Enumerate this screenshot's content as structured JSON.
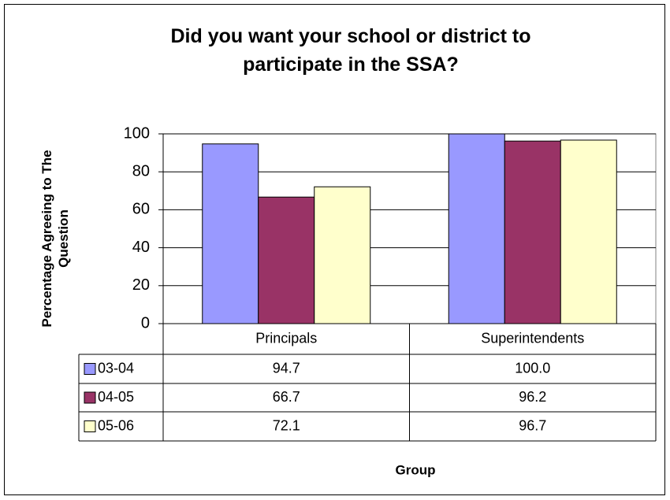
{
  "chart_data": {
    "type": "bar",
    "title": "Did you want your school or district to participate in the SSA?",
    "y_label": "Percentage Agreeing to The Question",
    "x_label": "Group",
    "categories": [
      "Principals",
      "Superintendents"
    ],
    "series": [
      {
        "name": "03-04",
        "color": "#9999ff",
        "values": [
          94.7,
          100
        ],
        "value_labels": [
          "94.7",
          "100.0"
        ]
      },
      {
        "name": "04-05",
        "color": "#993366",
        "values": [
          66.7,
          96.2
        ],
        "value_labels": [
          "66.7",
          "96.2"
        ]
      },
      {
        "name": "05-06",
        "color": "#ffffcc",
        "values": [
          72.1,
          96.7
        ],
        "value_labels": [
          "72.1",
          "96.7"
        ]
      }
    ],
    "ylim": [
      0,
      100
    ],
    "yticks": [
      0,
      20,
      40,
      60,
      80,
      100
    ],
    "grid": true
  }
}
